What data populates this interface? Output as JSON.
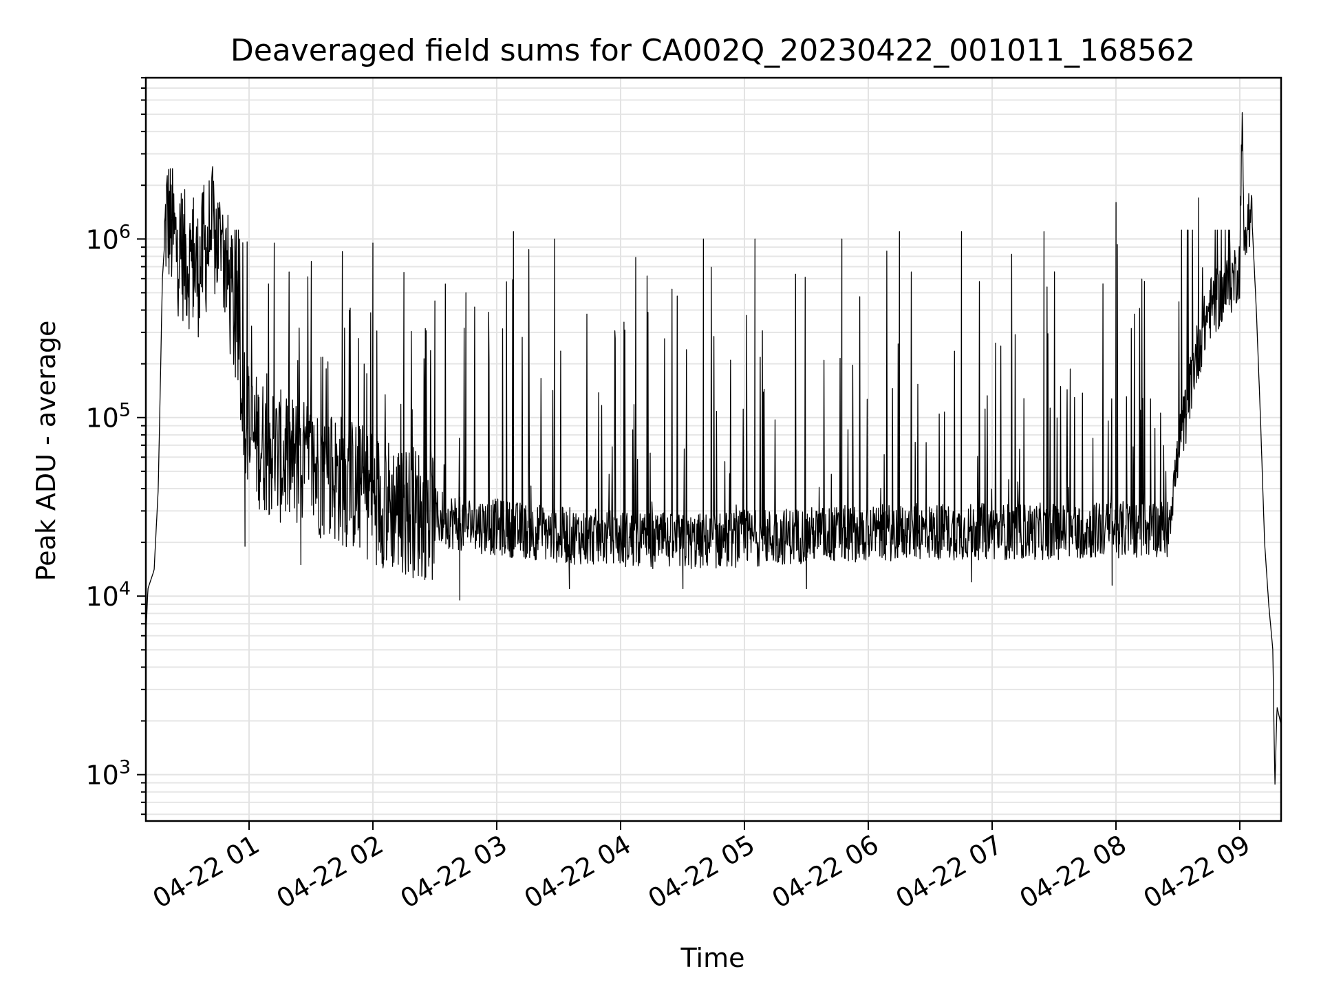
{
  "chart_data": {
    "type": "line",
    "title": "Deaveraged field sums for CA002Q_20230422_001011_168562",
    "xlabel": "Time",
    "ylabel": "Peak ADU - average",
    "y_scale": "log",
    "grid": "on (major and minor)",
    "xlim": [
      "2023-04-22 00:10",
      "2023-04-22 09:20"
    ],
    "ylim": [
      550,
      8000000
    ],
    "x_ticks": [
      {
        "value": "2023-04-22 01:00",
        "label": "04-22 01"
      },
      {
        "value": "2023-04-22 02:00",
        "label": "04-22 02"
      },
      {
        "value": "2023-04-22 03:00",
        "label": "04-22 03"
      },
      {
        "value": "2023-04-22 04:00",
        "label": "04-22 04"
      },
      {
        "value": "2023-04-22 05:00",
        "label": "04-22 05"
      },
      {
        "value": "2023-04-22 06:00",
        "label": "04-22 06"
      },
      {
        "value": "2023-04-22 07:00",
        "label": "04-22 07"
      },
      {
        "value": "2023-04-22 08:00",
        "label": "04-22 08"
      },
      {
        "value": "2023-04-22 09:00",
        "label": "04-22 09"
      }
    ],
    "y_ticks": [
      {
        "value": 1000,
        "base": "10",
        "exp": "3"
      },
      {
        "value": 10000,
        "base": "10",
        "exp": "4"
      },
      {
        "value": 100000,
        "base": "10",
        "exp": "5"
      },
      {
        "value": 1000000,
        "base": "10",
        "exp": "6"
      }
    ],
    "series": [
      {
        "name": "",
        "color": "#000000",
        "baseline_points": [
          {
            "x": "2023-04-22 00:10",
            "y": 6000
          },
          {
            "x": "2023-04-22 00:11",
            "y": 11000
          },
          {
            "x": "2023-04-22 00:14",
            "y": 14000
          },
          {
            "x": "2023-04-22 00:16",
            "y": 40000
          },
          {
            "x": "2023-04-22 00:17",
            "y": 150000
          },
          {
            "x": "2023-04-22 00:18",
            "y": 600000
          },
          {
            "x": "2023-04-22 00:20",
            "y": 1400000
          },
          {
            "x": "2023-04-22 00:25",
            "y": 900000
          },
          {
            "x": "2023-04-22 00:35",
            "y": 650000
          },
          {
            "x": "2023-04-22 00:42",
            "y": 1100000
          },
          {
            "x": "2023-04-22 00:48",
            "y": 800000
          },
          {
            "x": "2023-04-22 00:55",
            "y": 250000
          },
          {
            "x": "2023-04-22 01:00",
            "y": 80000
          },
          {
            "x": "2023-04-22 01:15",
            "y": 60000
          },
          {
            "x": "2023-04-22 01:45",
            "y": 45000
          },
          {
            "x": "2023-04-22 02:10",
            "y": 32000
          },
          {
            "x": "2023-04-22 02:40",
            "y": 26000
          },
          {
            "x": "2023-04-22 03:30",
            "y": 22000
          },
          {
            "x": "2023-04-22 04:30",
            "y": 20000
          },
          {
            "x": "2023-04-22 05:30",
            "y": 22000
          },
          {
            "x": "2023-04-22 06:30",
            "y": 23000
          },
          {
            "x": "2023-04-22 07:30",
            "y": 23000
          },
          {
            "x": "2023-04-22 08:25",
            "y": 24000
          },
          {
            "x": "2023-04-22 08:30",
            "y": 60000
          },
          {
            "x": "2023-04-22 08:38",
            "y": 200000
          },
          {
            "x": "2023-04-22 08:45",
            "y": 400000
          },
          {
            "x": "2023-04-22 08:55",
            "y": 550000
          },
          {
            "x": "2023-04-22 09:00",
            "y": 700000
          },
          {
            "x": "2023-04-22 09:01",
            "y": 5000000
          },
          {
            "x": "2023-04-22 09:02",
            "y": 1000000
          },
          {
            "x": "2023-04-22 09:04",
            "y": 1400000
          },
          {
            "x": "2023-04-22 09:06",
            "y": 1200000
          },
          {
            "x": "2023-04-22 09:08",
            "y": 400000
          },
          {
            "x": "2023-04-22 09:10",
            "y": 100000
          },
          {
            "x": "2023-04-22 09:12",
            "y": 20000
          },
          {
            "x": "2023-04-22 09:14",
            "y": 9000
          },
          {
            "x": "2023-04-22 09:16",
            "y": 5000
          },
          {
            "x": "2023-04-22 09:17",
            "y": 850
          },
          {
            "x": "2023-04-22 09:18",
            "y": 2400
          },
          {
            "x": "2023-04-22 09:20",
            "y": 1900
          }
        ],
        "spikes": [
          {
            "x": "2023-04-22 00:27",
            "y": 1800000
          },
          {
            "x": "2023-04-22 00:33",
            "y": 1700000
          },
          {
            "x": "2023-04-22 00:38",
            "y": 2000000
          },
          {
            "x": "2023-04-22 00:52",
            "y": 1000000
          },
          {
            "x": "2023-04-22 01:12",
            "y": 950000
          },
          {
            "x": "2023-04-22 01:30",
            "y": 750000
          },
          {
            "x": "2023-04-22 01:45",
            "y": 850000
          },
          {
            "x": "2023-04-22 02:00",
            "y": 950000
          },
          {
            "x": "2023-04-22 02:15",
            "y": 650000
          },
          {
            "x": "2023-04-22 02:30",
            "y": 450000
          },
          {
            "x": "2023-04-22 02:45",
            "y": 500000
          },
          {
            "x": "2023-04-22 03:08",
            "y": 1100000
          },
          {
            "x": "2023-04-22 03:28",
            "y": 1000000
          },
          {
            "x": "2023-04-22 04:40",
            "y": 1000000
          },
          {
            "x": "2023-04-22 05:05",
            "y": 1000000
          },
          {
            "x": "2023-04-22 05:47",
            "y": 1000000
          },
          {
            "x": "2023-04-22 06:15",
            "y": 1100000
          },
          {
            "x": "2023-04-22 06:45",
            "y": 1100000
          },
          {
            "x": "2023-04-22 07:25",
            "y": 1100000
          },
          {
            "x": "2023-04-22 08:00",
            "y": 1600000
          },
          {
            "x": "2023-04-22 08:40",
            "y": 1700000
          }
        ],
        "dips": [
          {
            "x": "2023-04-22 00:58",
            "y": 19000
          },
          {
            "x": "2023-04-22 01:25",
            "y": 15000
          },
          {
            "x": "2023-04-22 02:05",
            "y": 15000
          },
          {
            "x": "2023-04-22 02:42",
            "y": 9500
          },
          {
            "x": "2023-04-22 03:35",
            "y": 11000
          },
          {
            "x": "2023-04-22 04:30",
            "y": 11000
          },
          {
            "x": "2023-04-22 05:30",
            "y": 11000
          },
          {
            "x": "2023-04-22 06:50",
            "y": 12000
          },
          {
            "x": "2023-04-22 07:58",
            "y": 11500
          }
        ]
      }
    ]
  }
}
